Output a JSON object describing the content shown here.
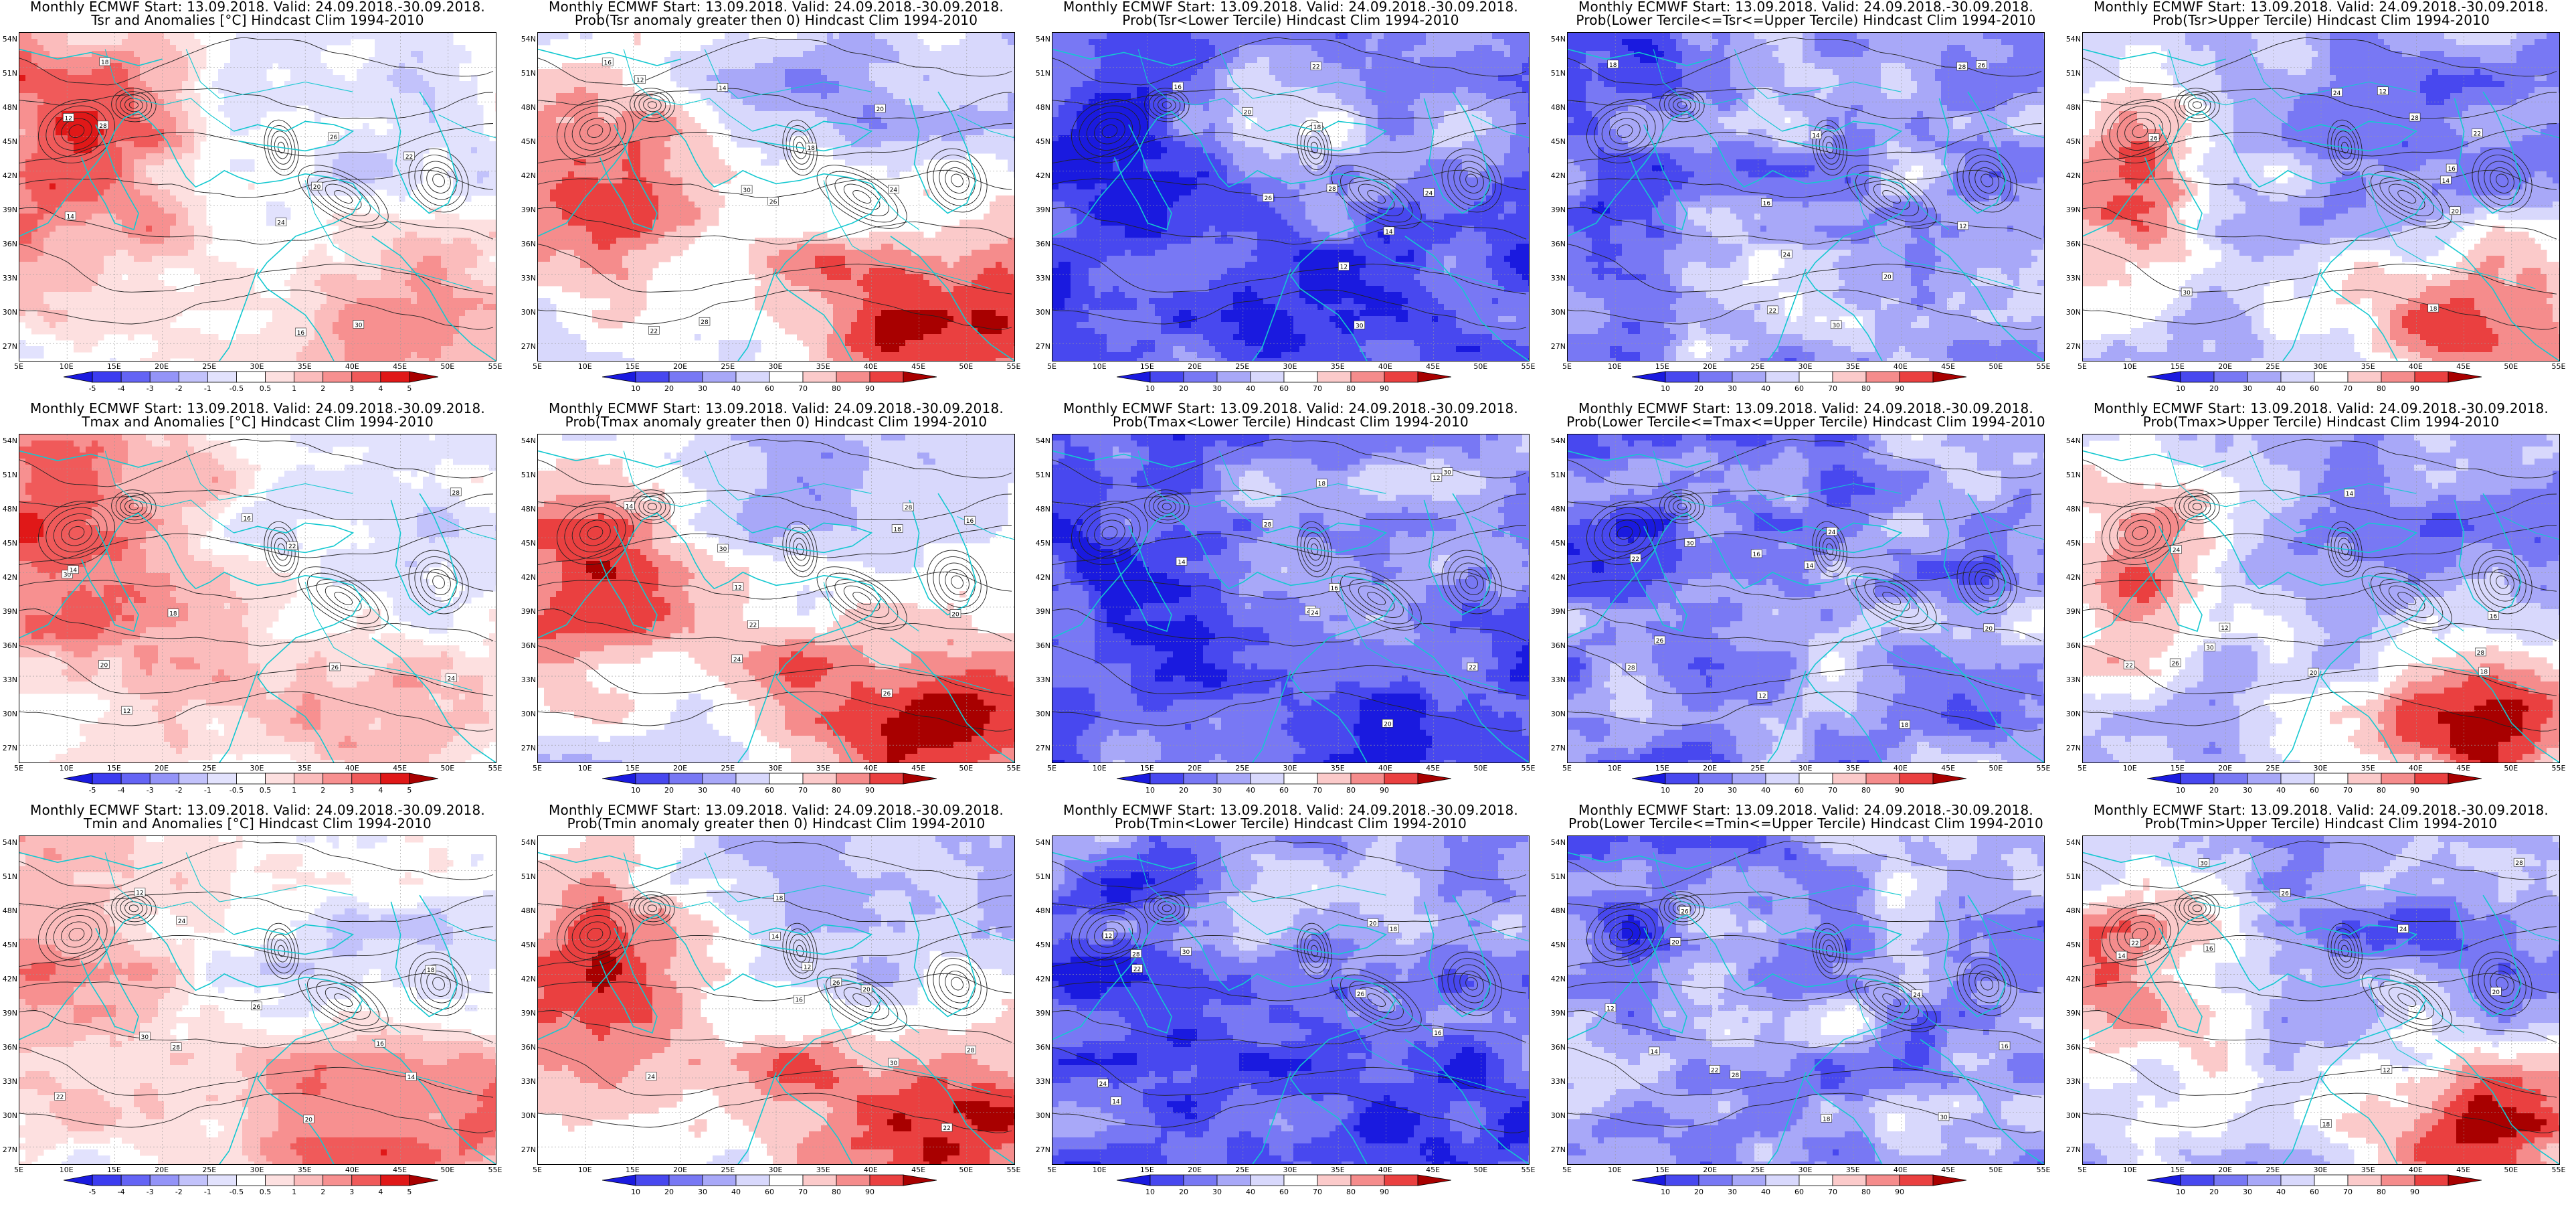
{
  "title_common": "Monthly ECMWF Start: 13.09.2018. Valid: 24.09.2018.-30.09.2018.",
  "lat_labels": [
    "54N",
    "51N",
    "48N",
    "45N",
    "42N",
    "39N",
    "36N",
    "33N",
    "30N",
    "27N"
  ],
  "lon_labels": [
    "5E",
    "10E",
    "15E",
    "20E",
    "25E",
    "30E",
    "35E",
    "40E",
    "45E",
    "50E",
    "55E"
  ],
  "anomaly_scale": {
    "ticks": [
      "-5",
      "-4",
      "-3",
      "-2",
      "-1",
      "-0.5",
      "0.5",
      "1",
      "2",
      "3",
      "4",
      "5"
    ],
    "colors": [
      "#1a1adf",
      "#3c3cf0",
      "#6464f5",
      "#9494f8",
      "#c2c2fb",
      "#e2e2fd",
      "#ffffff",
      "#fde0e0",
      "#fbbcbc",
      "#f79090",
      "#f05a5a",
      "#e01818",
      "#a80000"
    ]
  },
  "prob_scale": {
    "ticks": [
      "10",
      "20",
      "30",
      "40",
      "60",
      "70",
      "80",
      "90"
    ],
    "colors": [
      "#1a1adf",
      "#4848ef",
      "#7878f4",
      "#a8a8f8",
      "#d8d8fc",
      "#ffffff",
      "#fbcaca",
      "#f58c8c",
      "#ea4040",
      "#a80000"
    ]
  },
  "panels": [
    {
      "row": 0,
      "col": 0,
      "line2": "Tsr and Anomalies [°C] Hindcast Clim 1994-2010",
      "scale": "anomaly",
      "field": "anom_warm_w"
    },
    {
      "row": 0,
      "col": 1,
      "line2": "Prob(Tsr anomaly greater then 0) Hindcast Clim 1994-2010",
      "scale": "prob",
      "field": "warm_w_se"
    },
    {
      "row": 0,
      "col": 2,
      "line2": "Prob(Tsr<Lower Tercile) Hindcast Clim 1994-2010",
      "scale": "prob",
      "field": "blue_strong"
    },
    {
      "row": 0,
      "col": 3,
      "line2": "Prob(Lower Tercile<=Tsr<=Upper Tercile) Hindcast Clim 1994-2010",
      "scale": "prob",
      "field": "blue_mixed"
    },
    {
      "row": 0,
      "col": 4,
      "line2": "Prob(Tsr>Upper Tercile) Hindcast Clim 1994-2010",
      "scale": "prob",
      "field": "upper_red"
    },
    {
      "row": 1,
      "col": 0,
      "line2": "Tmax and Anomalies [°C] Hindcast Clim 1994-2010",
      "scale": "anomaly",
      "field": "anom_warm_w"
    },
    {
      "row": 1,
      "col": 1,
      "line2": "Prob(Tmax anomaly greater then 0) Hindcast Clim 1994-2010",
      "scale": "prob",
      "field": "warm_w_se"
    },
    {
      "row": 1,
      "col": 2,
      "line2": "Prob(Tmax<Lower Tercile) Hindcast Clim 1994-2010",
      "scale": "prob",
      "field": "blue_strong"
    },
    {
      "row": 1,
      "col": 3,
      "line2": "Prob(Lower Tercile<=Tmax<=Upper Tercile) Hindcast Clim 1994-2010",
      "scale": "prob",
      "field": "blue_mixed"
    },
    {
      "row": 1,
      "col": 4,
      "line2": "Prob(Tmax>Upper Tercile) Hindcast Clim 1994-2010",
      "scale": "prob",
      "field": "upper_red"
    },
    {
      "row": 2,
      "col": 0,
      "line2": "Tmin and Anomalies [°C] Hindcast Clim 1994-2010",
      "scale": "anomaly",
      "field": "anom_warm_se"
    },
    {
      "row": 2,
      "col": 1,
      "line2": "Prob(Tmin anomaly greater then 0) Hindcast Clim 1994-2010",
      "scale": "prob",
      "field": "warm_w_se"
    },
    {
      "row": 2,
      "col": 2,
      "line2": "Prob(Tmin<Lower Tercile) Hindcast Clim 1994-2010",
      "scale": "prob",
      "field": "blue_strong"
    },
    {
      "row": 2,
      "col": 3,
      "line2": "Prob(Lower Tercile<=Tmin<=Upper Tercile) Hindcast Clim 1994-2010",
      "scale": "prob",
      "field": "blue_mixed"
    },
    {
      "row": 2,
      "col": 4,
      "line2": "Prob(Tmin>Upper Tercile) Hindcast Clim 1994-2010",
      "scale": "prob",
      "field": "upper_red"
    }
  ],
  "contour_labels": [
    "12",
    "14",
    "16",
    "18",
    "20",
    "22",
    "24",
    "26",
    "28",
    "30"
  ]
}
